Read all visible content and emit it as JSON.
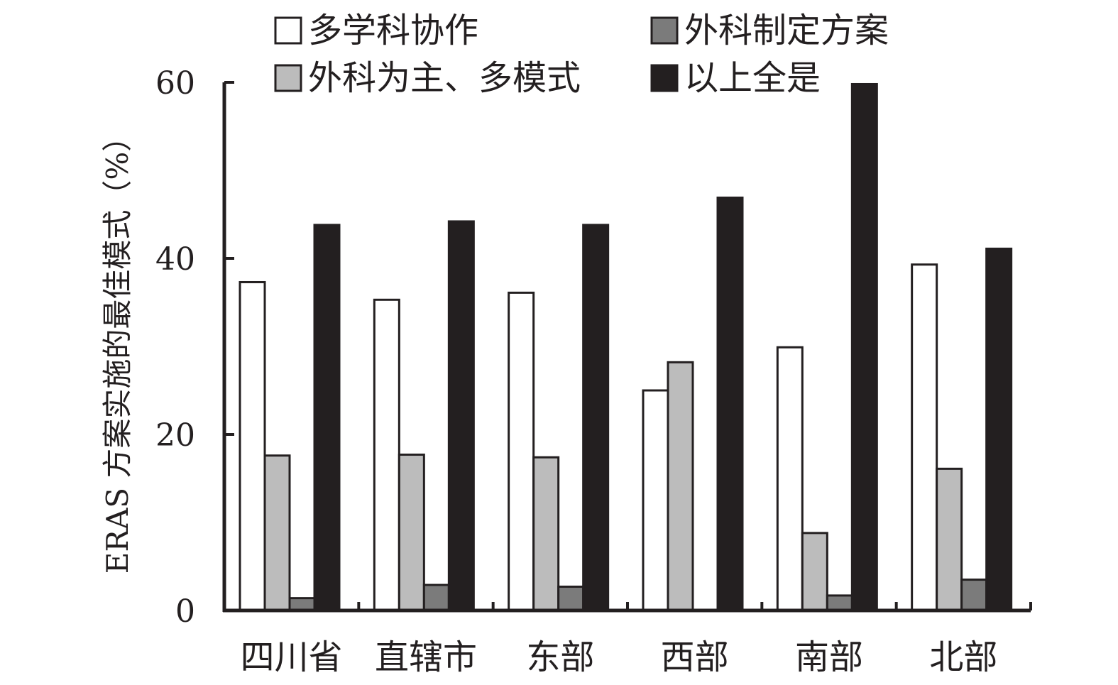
{
  "chart_data": {
    "type": "bar",
    "ylabel": "ERAS 方案实施的最佳模式（%）",
    "ylim": [
      0,
      60
    ],
    "yticks": [
      0,
      20,
      40,
      60
    ],
    "categories": [
      "四川省",
      "直辖市",
      "东部",
      "西部",
      "南部",
      "北部"
    ],
    "series": [
      {
        "name": "多学科协作",
        "color": "#ffffff",
        "values": [
          37.3,
          35.3,
          36.1,
          25.0,
          29.9,
          39.3
        ]
      },
      {
        "name": "外科为主、多模式",
        "color": "#bcbcbc",
        "values": [
          17.6,
          17.7,
          17.4,
          28.2,
          8.8,
          16.1
        ]
      },
      {
        "name": "外科制定方案",
        "color": "#7b7b7b",
        "values": [
          1.4,
          2.9,
          2.7,
          0,
          1.7,
          3.5
        ]
      },
      {
        "name": "以上全是",
        "color": "#231f20",
        "values": [
          43.8,
          44.2,
          43.8,
          46.9,
          59.8,
          41.1
        ]
      }
    ],
    "legend": {
      "placement": "top",
      "order": [
        "多学科协作",
        "外科制定方案",
        "外科为主、多模式",
        "以上全是"
      ]
    },
    "grid": false
  }
}
